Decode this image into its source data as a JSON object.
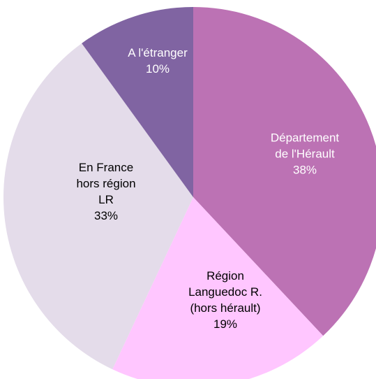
{
  "chart_data": {
    "type": "pie",
    "categories": [
      [
        "Département",
        "de l'Hérault"
      ],
      [
        "Région",
        "Languedoc R.",
        "(hors hérault)"
      ],
      [
        "En France",
        "hors région",
        "LR"
      ],
      [
        "A l'étranger"
      ]
    ],
    "values": [
      38,
      19,
      33,
      10
    ],
    "value_labels": [
      "38%",
      "19%",
      "33%",
      "10%"
    ],
    "colors": [
      "#bc72b4",
      "#ffc6ff",
      "#e4dcea",
      "#8064a2"
    ]
  }
}
